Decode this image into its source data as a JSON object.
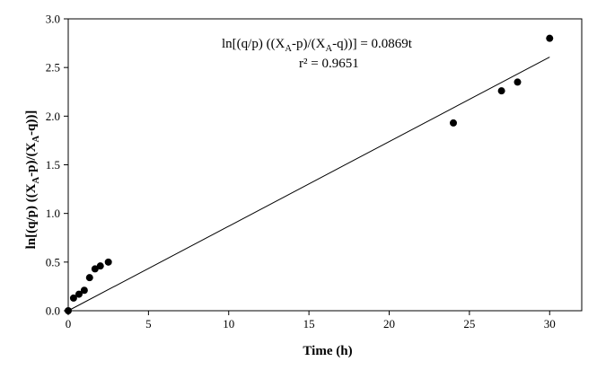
{
  "chart_data": {
    "type": "scatter",
    "xlabel": "Time (h)",
    "ylabel_parts": [
      "ln[(q/p) ((X",
      "A",
      "-p)/(X",
      "A",
      "-q))]"
    ],
    "xlim": [
      0,
      32
    ],
    "ylim": [
      0,
      3.0
    ],
    "x_ticks": [
      0,
      5,
      10,
      15,
      20,
      25,
      30
    ],
    "y_ticks": [
      0.0,
      0.5,
      1.0,
      1.5,
      2.0,
      2.5,
      3.0
    ],
    "x_tick_labels": [
      "0",
      "5",
      "10",
      "15",
      "20",
      "25",
      "30"
    ],
    "y_tick_labels": [
      "0.0",
      "0.5",
      "1.0",
      "1.5",
      "2.0",
      "2.5",
      "3.0"
    ],
    "grid": false,
    "legend": "none",
    "series": [
      {
        "points": [
          {
            "x": 0,
            "y": 0.0
          },
          {
            "x": 0.33,
            "y": 0.13
          },
          {
            "x": 0.67,
            "y": 0.17
          },
          {
            "x": 1.0,
            "y": 0.21
          },
          {
            "x": 1.33,
            "y": 0.34
          },
          {
            "x": 1.67,
            "y": 0.43
          },
          {
            "x": 2.0,
            "y": 0.46
          },
          {
            "x": 2.5,
            "y": 0.5
          },
          {
            "x": 24,
            "y": 1.93
          },
          {
            "x": 27,
            "y": 2.26
          },
          {
            "x": 28,
            "y": 2.35
          },
          {
            "x": 30,
            "y": 2.8
          }
        ],
        "marker": "filled-circle",
        "color": "#000000"
      }
    ],
    "fit_line": {
      "slope": 0.0869,
      "intercept": 0,
      "x_from": 0,
      "x_to": 30,
      "color": "#000000"
    },
    "annotation": {
      "equation_parts": [
        "ln[(q/p) ((X",
        "A",
        "-p)/(X",
        "A",
        "-q))] = 0.0869t"
      ],
      "r2": "r² = 0.9651"
    }
  }
}
